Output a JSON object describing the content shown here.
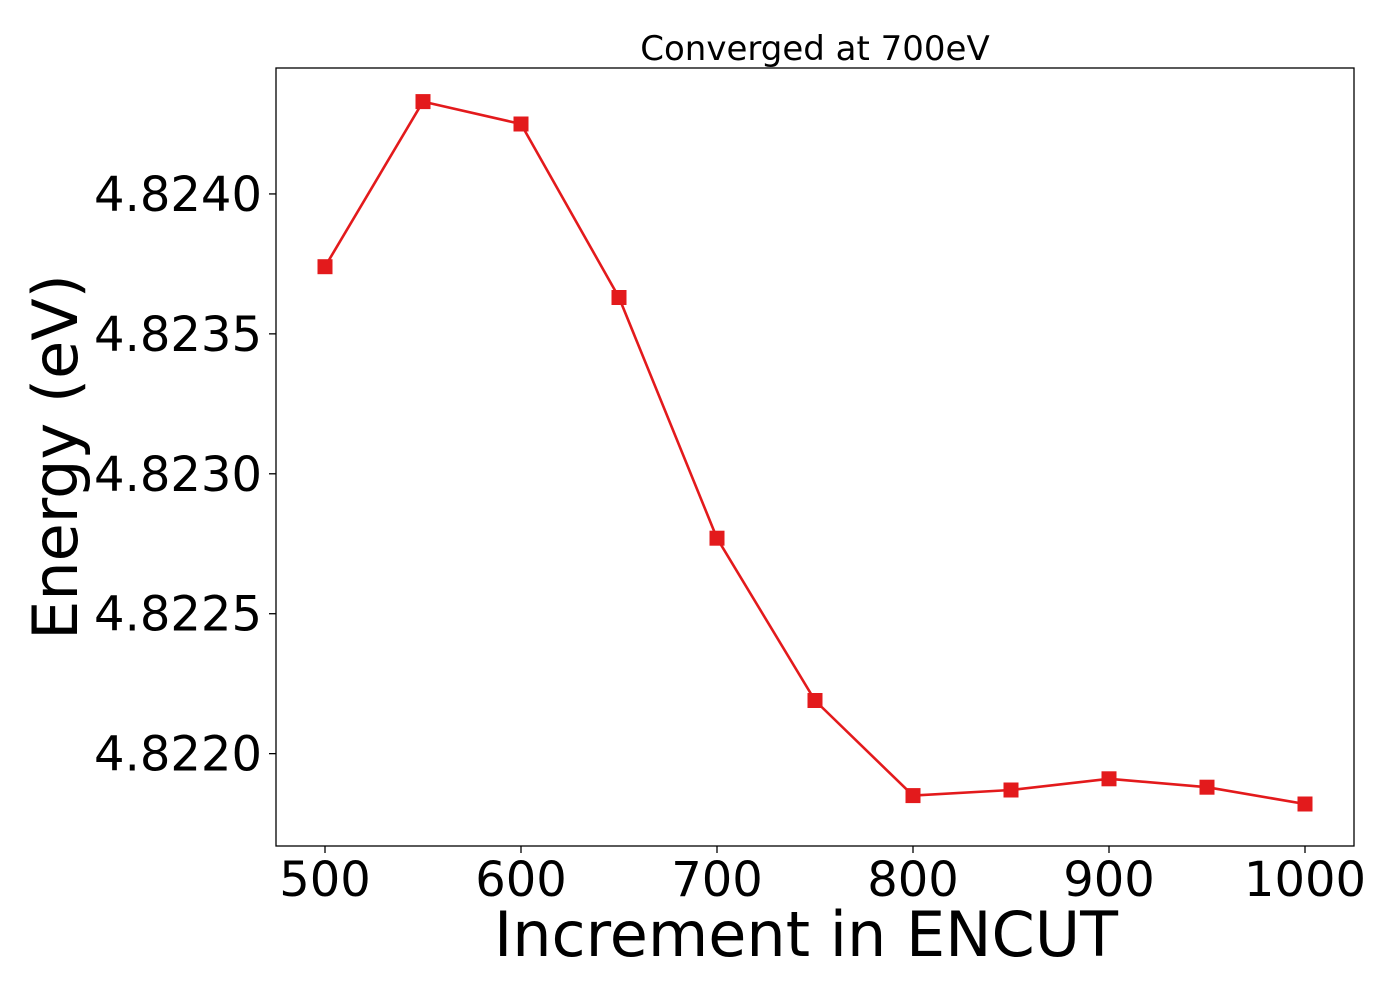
{
  "chart_data": {
    "type": "line",
    "title": "Converged at 700eV",
    "xlabel": "Increment in ENCUT",
    "ylabel": "Energy (eV)",
    "x": [
      500,
      550,
      600,
      650,
      700,
      750,
      800,
      850,
      900,
      950,
      1000
    ],
    "series": [
      {
        "values": [
          4.82374,
          4.82433,
          4.82425,
          4.82363,
          4.82277,
          4.82219,
          4.82185,
          4.82187,
          4.82191,
          4.82188,
          4.82182
        ],
        "color": "#e31a1c",
        "marker": "square"
      }
    ],
    "xlim": [
      475,
      1025
    ],
    "ylim": [
      4.82167,
      4.82445
    ],
    "xticks": [
      500,
      600,
      700,
      800,
      900,
      1000
    ],
    "xtick_labels": [
      "500",
      "600",
      "700",
      "800",
      "900",
      "1000"
    ],
    "yticks": [
      4.822,
      4.8225,
      4.823,
      4.8235,
      4.824
    ],
    "ytick_labels": [
      "4.8220",
      "4.8225",
      "4.8230",
      "4.8235",
      "4.8240"
    ],
    "grid": false,
    "legend": "none"
  }
}
